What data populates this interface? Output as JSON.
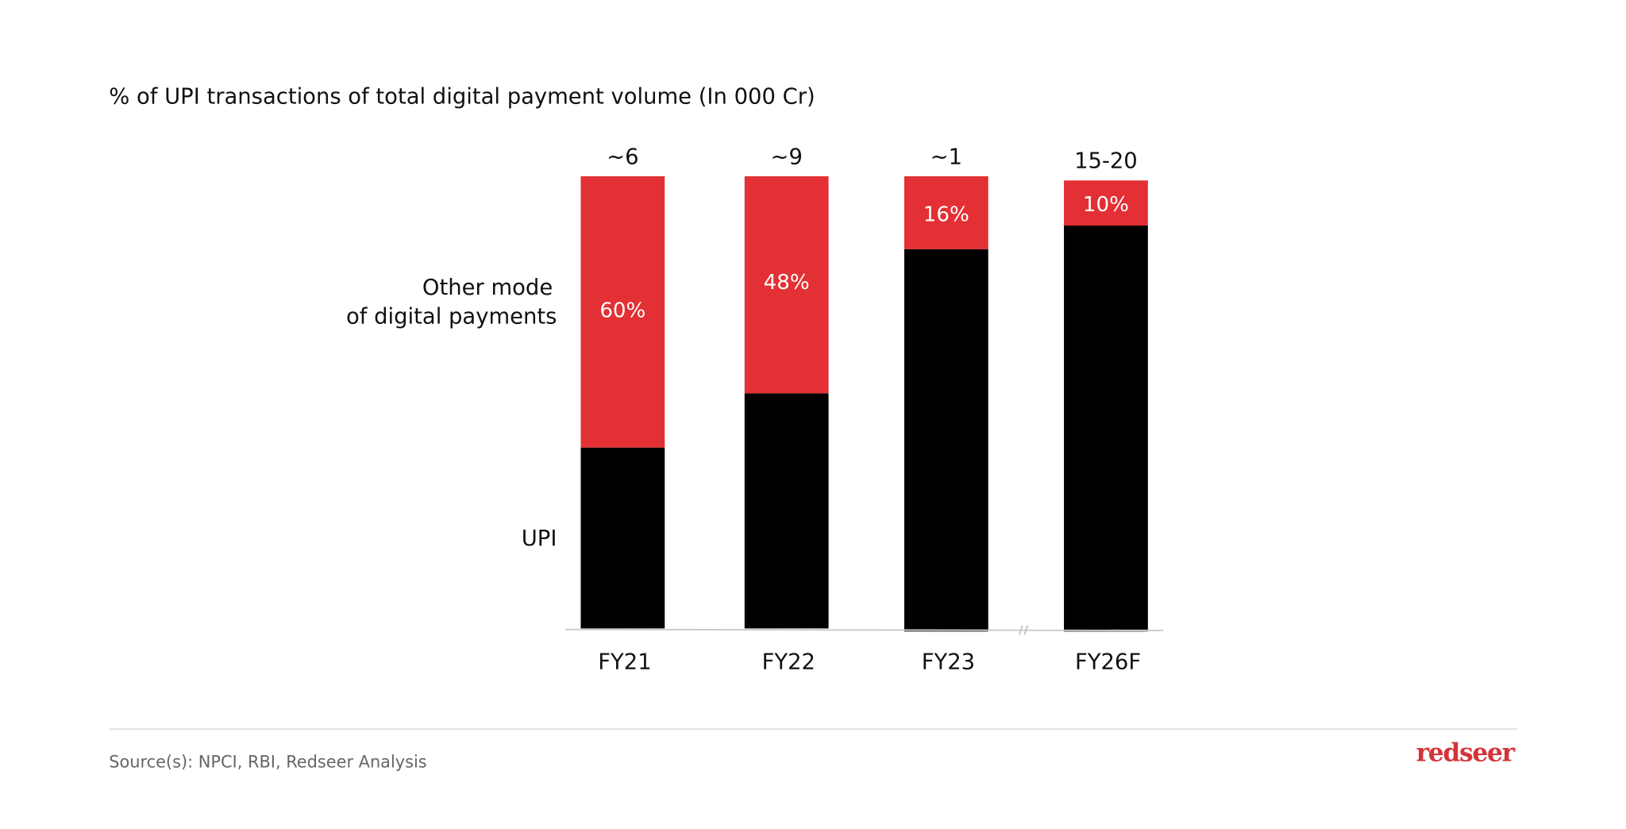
{
  "chart_data": {
    "type": "bar",
    "stacked": true,
    "title": "% of UPI transactions of total digital payment volume (In 000 Cr)",
    "categories": [
      "FY21",
      "FY22",
      "FY23",
      "FY26F"
    ],
    "totals_labels": [
      "~6",
      "~9",
      "~1",
      "15-20"
    ],
    "series": [
      {
        "name": "UPI",
        "values": [
          40,
          52,
          84,
          90
        ],
        "color": "#000000"
      },
      {
        "name": "Other mode of digital payments",
        "name_lines": [
          "Other mode",
          "of digital payments"
        ],
        "values": [
          60,
          48,
          16,
          10
        ],
        "value_labels": [
          "60%",
          "48%",
          "16%",
          "10%"
        ],
        "color": "#E33034"
      }
    ],
    "ylim": [
      0,
      100
    ],
    "axis_break_between": [
      "FY23",
      "FY26F"
    ],
    "grid": false,
    "legend_placement": "left"
  },
  "footer": {
    "source": "Source(s): NPCI,  RBI,  Redseer Analysis",
    "logo": "redseer",
    "logo_color": "#D3343A"
  }
}
